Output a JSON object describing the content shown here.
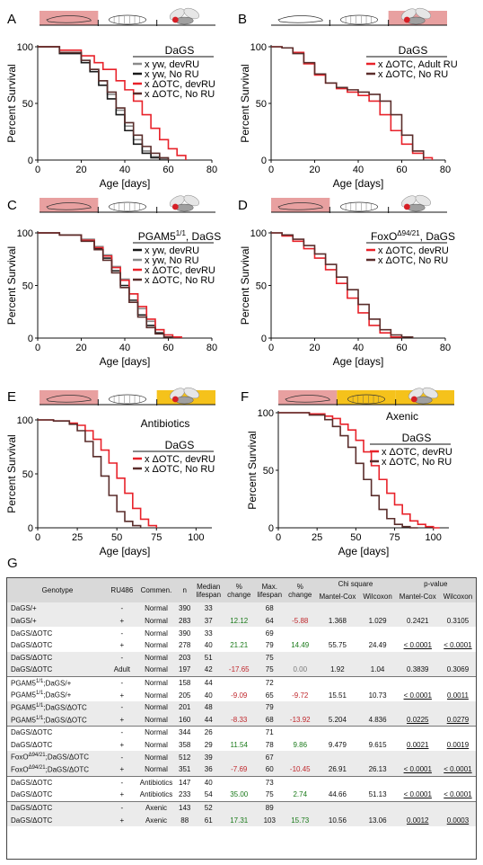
{
  "colors": {
    "black": "#1a1a1a",
    "gray": "#8a8a8a",
    "red": "#e8222a",
    "brown": "#5a2d2b",
    "pink": "#e8a0a0",
    "yellow": "#f5c21b",
    "green": "#1a7a1a",
    "negred": "#c0282d"
  },
  "chart_data": [
    {
      "panel": "A",
      "type": "line",
      "xlabel": "Age [days]",
      "ylabel": "Percent Survival",
      "xlim": [
        0,
        80
      ],
      "ylim": [
        0,
        100
      ],
      "xticks": [
        "0",
        "20",
        "40",
        "60",
        "80"
      ],
      "yticks": [
        "0",
        "50",
        "100"
      ],
      "stage_bar": {
        "larva": "pink",
        "pupa": "none",
        "adult": "none"
      },
      "legend_title": "DaGS",
      "series": [
        {
          "name": "x yw, devRU",
          "color": "gray",
          "x": [
            0,
            10,
            20,
            24,
            28,
            32,
            36,
            40,
            44,
            48,
            52,
            56,
            60
          ],
          "y": [
            100,
            95,
            88,
            80,
            70,
            58,
            44,
            30,
            18,
            8,
            3,
            1,
            0
          ]
        },
        {
          "name": "x yw, No RU",
          "color": "black",
          "x": [
            0,
            10,
            20,
            24,
            28,
            32,
            36,
            40,
            44,
            48,
            52,
            56
          ],
          "y": [
            100,
            94,
            86,
            78,
            66,
            54,
            40,
            26,
            14,
            6,
            2,
            0
          ]
        },
        {
          "name": "x ΔOTC, devRU",
          "color": "red",
          "x": [
            0,
            10,
            20,
            26,
            30,
            36,
            40,
            44,
            48,
            52,
            56,
            60,
            64,
            68
          ],
          "y": [
            100,
            97,
            92,
            86,
            80,
            70,
            62,
            52,
            40,
            28,
            18,
            10,
            4,
            0
          ]
        },
        {
          "name": "x ΔOTC, No RU",
          "color": "brown",
          "x": [
            0,
            10,
            20,
            24,
            28,
            32,
            36,
            40,
            44,
            48,
            52,
            56,
            60
          ],
          "y": [
            100,
            95,
            88,
            80,
            70,
            60,
            46,
            33,
            22,
            12,
            6,
            2,
            0
          ]
        }
      ]
    },
    {
      "panel": "B",
      "type": "line",
      "xlabel": "Age [days]",
      "ylabel": "Percent Survival",
      "xlim": [
        0,
        80
      ],
      "ylim": [
        0,
        100
      ],
      "xticks": [
        "0",
        "20",
        "40",
        "60",
        "80"
      ],
      "yticks": [
        "0",
        "50",
        "100"
      ],
      "stage_bar": {
        "larva": "none",
        "pupa": "none",
        "adult": "pink"
      },
      "legend_title": "DaGS",
      "series": [
        {
          "name": "x ΔOTC, Adult RU",
          "color": "red",
          "x": [
            0,
            5,
            10,
            15,
            20,
            25,
            30,
            35,
            40,
            45,
            50,
            55,
            60,
            65,
            70,
            74
          ],
          "y": [
            100,
            99,
            95,
            85,
            75,
            68,
            63,
            60,
            57,
            52,
            40,
            26,
            14,
            6,
            2,
            0
          ]
        },
        {
          "name": "x ΔOTC, No RU",
          "color": "brown",
          "x": [
            0,
            5,
            10,
            15,
            20,
            25,
            30,
            35,
            40,
            45,
            50,
            55,
            60,
            65,
            70
          ],
          "y": [
            100,
            99,
            94,
            86,
            76,
            68,
            64,
            62,
            60,
            58,
            52,
            40,
            22,
            8,
            0
          ]
        }
      ]
    },
    {
      "panel": "C",
      "type": "line",
      "xlabel": "Age [days]",
      "ylabel": "Percent Survival",
      "xlim": [
        0,
        80
      ],
      "ylim": [
        0,
        100
      ],
      "xticks": [
        "0",
        "20",
        "40",
        "60",
        "80"
      ],
      "yticks": [
        "0",
        "50",
        "100"
      ],
      "stage_bar": {
        "larva": "pink",
        "pupa": "none",
        "adult": "none"
      },
      "legend_title": "PGAM5",
      "legend_title_sup": "1/1",
      "legend_title_suffix": ", DaGS",
      "series": [
        {
          "name": "x yw, devRU",
          "color": "black",
          "x": [
            0,
            10,
            20,
            26,
            30,
            34,
            38,
            42,
            46,
            50,
            54,
            58,
            62
          ],
          "y": [
            100,
            98,
            93,
            85,
            76,
            64,
            50,
            36,
            22,
            12,
            5,
            1,
            0
          ]
        },
        {
          "name": "x yw, No RU",
          "color": "gray",
          "x": [
            0,
            10,
            20,
            26,
            30,
            34,
            38,
            42,
            46,
            50,
            54,
            58,
            62,
            66
          ],
          "y": [
            100,
            98,
            94,
            87,
            79,
            68,
            56,
            42,
            28,
            16,
            8,
            3,
            1,
            0
          ]
        },
        {
          "name": "x ΔOTC, devRU",
          "color": "red",
          "x": [
            0,
            10,
            20,
            26,
            30,
            34,
            38,
            42,
            46,
            50,
            54,
            58,
            62,
            66
          ],
          "y": [
            100,
            98,
            93,
            86,
            78,
            67,
            55,
            42,
            30,
            18,
            8,
            3,
            1,
            0
          ]
        },
        {
          "name": "x ΔOTC, No RU",
          "color": "brown",
          "x": [
            0,
            10,
            20,
            26,
            30,
            34,
            38,
            42,
            46,
            50,
            54,
            58,
            62
          ],
          "y": [
            100,
            98,
            92,
            84,
            74,
            62,
            48,
            34,
            20,
            10,
            4,
            1,
            0
          ]
        }
      ]
    },
    {
      "panel": "D",
      "type": "line",
      "xlabel": "Age [days]",
      "ylabel": "Percent Survival",
      "xlim": [
        0,
        80
      ],
      "ylim": [
        0,
        100
      ],
      "xticks": [
        "0",
        "20",
        "40",
        "60",
        "80"
      ],
      "yticks": [
        "0",
        "50",
        "100"
      ],
      "stage_bar": {
        "larva": "pink",
        "pupa": "none",
        "adult": "none"
      },
      "legend_title": "FoxO",
      "legend_title_sup": "Δ94/21",
      "legend_title_suffix": ", DaGS",
      "series": [
        {
          "name": "x ΔOTC, devRU",
          "color": "red",
          "x": [
            0,
            5,
            10,
            15,
            20,
            25,
            30,
            35,
            40,
            45,
            50,
            55,
            60
          ],
          "y": [
            100,
            97,
            92,
            85,
            76,
            65,
            52,
            38,
            24,
            12,
            5,
            1,
            0
          ]
        },
        {
          "name": "x ΔOTC, No RU",
          "color": "brown",
          "x": [
            0,
            5,
            10,
            15,
            20,
            25,
            30,
            35,
            40,
            45,
            50,
            55,
            60,
            65
          ],
          "y": [
            100,
            98,
            94,
            88,
            80,
            70,
            58,
            46,
            32,
            18,
            8,
            3,
            1,
            0
          ]
        }
      ]
    },
    {
      "panel": "E",
      "type": "line",
      "xlabel": "Age [days]",
      "ylabel": "Percent Survival",
      "xlim": [
        0,
        110
      ],
      "ylim": [
        0,
        100
      ],
      "xticks": [
        "0",
        "25",
        "50",
        "75",
        "100"
      ],
      "yticks": [
        "0",
        "50",
        "100"
      ],
      "stage_bar": {
        "larva": "pink",
        "pupa": "none",
        "adult": "yellow"
      },
      "annotation": "Antibiotics",
      "legend_title": "DaGS",
      "series": [
        {
          "name": "x ΔOTC, devRU",
          "color": "red",
          "x": [
            0,
            10,
            20,
            25,
            30,
            35,
            40,
            45,
            50,
            55,
            60,
            65,
            70,
            75
          ],
          "y": [
            100,
            99,
            97,
            95,
            90,
            82,
            72,
            60,
            46,
            32,
            18,
            8,
            2,
            0
          ]
        },
        {
          "name": "x ΔOTC, No RU",
          "color": "brown",
          "x": [
            0,
            10,
            20,
            25,
            30,
            35,
            40,
            45,
            50,
            55,
            60,
            65
          ],
          "y": [
            100,
            99,
            96,
            90,
            80,
            66,
            48,
            30,
            15,
            6,
            2,
            0
          ]
        }
      ]
    },
    {
      "panel": "F",
      "type": "line",
      "xlabel": "Age [days]",
      "ylabel": "Percent Survival",
      "xlim": [
        0,
        110
      ],
      "ylim": [
        0,
        100
      ],
      "xticks": [
        "0",
        "25",
        "50",
        "75",
        "100"
      ],
      "yticks": [
        "0",
        "50",
        "100"
      ],
      "stage_bar": {
        "larva": "pink",
        "pupa": "yellow",
        "adult": "yellow"
      },
      "annotation": "Axenic",
      "legend_title": "DaGS",
      "series": [
        {
          "name": "x ΔOTC, devRU",
          "color": "red",
          "x": [
            0,
            20,
            30,
            35,
            40,
            45,
            50,
            55,
            60,
            65,
            70,
            75,
            80,
            85,
            90,
            95,
            100,
            104
          ],
          "y": [
            100,
            99,
            97,
            95,
            90,
            85,
            76,
            66,
            54,
            42,
            30,
            20,
            12,
            6,
            3,
            1,
            0,
            0
          ]
        },
        {
          "name": "x ΔOTC, No RU",
          "color": "brown",
          "x": [
            0,
            20,
            30,
            35,
            40,
            45,
            50,
            55,
            60,
            65,
            70,
            75,
            80,
            85,
            90
          ],
          "y": [
            100,
            98,
            94,
            88,
            80,
            70,
            56,
            42,
            28,
            16,
            8,
            3,
            1,
            0,
            0
          ]
        }
      ]
    }
  ],
  "table": {
    "panel_label": "G",
    "headers": {
      "genotype": "Genotype",
      "ru": "RU486",
      "comment": "Commen.",
      "n": "n",
      "median": "Median lifespan",
      "pct1": "% change",
      "max": "Max. lifespan",
      "pct2": "% change",
      "chi": "Chi square",
      "pval": "p-value",
      "mc": "Mantel-Cox",
      "wx": "Wilcoxon"
    },
    "rows": [
      {
        "g": "DaGS/+",
        "ru": "-",
        "c": "Normal",
        "n": "390",
        "med": "33",
        "pc1": "",
        "mx": "68",
        "pc2": "",
        "chimc": "",
        "chiwx": "",
        "pmc": "",
        "pwx": ""
      },
      {
        "g": "DaGS/+",
        "ru": "+",
        "c": "Normal",
        "n": "283",
        "med": "37",
        "pc1": "12.12",
        "mx": "64",
        "pc2": "-5.88",
        "chimc": "1.368",
        "chiwx": "1.029",
        "pmc": "0.2421",
        "pwx": "0.3105"
      },
      {
        "g": "DaGS/ΔOTC",
        "ru": "-",
        "c": "Normal",
        "n": "390",
        "med": "33",
        "pc1": "",
        "mx": "69",
        "pc2": "",
        "chimc": "",
        "chiwx": "",
        "pmc": "",
        "pwx": ""
      },
      {
        "g": "DaGS/ΔOTC",
        "ru": "+",
        "c": "Normal",
        "n": "278",
        "med": "40",
        "pc1": "21.21",
        "mx": "79",
        "pc2": "14.49",
        "chimc": "55.75",
        "chiwx": "24.49",
        "pmc": "< 0.0001",
        "pwx": "< 0.0001"
      },
      {
        "g": "DaGS/ΔOTC",
        "ru": "-",
        "c": "Normal",
        "n": "203",
        "med": "51",
        "pc1": "",
        "mx": "75",
        "pc2": "",
        "chimc": "",
        "chiwx": "",
        "pmc": "",
        "pwx": ""
      },
      {
        "g": "DaGS/ΔOTC",
        "ru": "Adult",
        "c": "Normal",
        "n": "197",
        "med": "42",
        "pc1": "-17.65",
        "mx": "75",
        "pc2": "0.00",
        "chimc": "1.92",
        "chiwx": "1.04",
        "pmc": "0.3839",
        "pwx": "0.3069"
      },
      {
        "g": "PGAM5",
        "sup": "1/1",
        "gs": ";DaGS/+",
        "ru": "-",
        "c": "Normal",
        "n": "158",
        "med": "44",
        "pc1": "",
        "mx": "72",
        "pc2": "",
        "chimc": "",
        "chiwx": "",
        "pmc": "",
        "pwx": ""
      },
      {
        "g": "PGAM5",
        "sup": "1/1",
        "gs": ";DaGS/+",
        "ru": "+",
        "c": "Normal",
        "n": "205",
        "med": "40",
        "pc1": "-9.09",
        "mx": "65",
        "pc2": "-9.72",
        "chimc": "15.51",
        "chiwx": "10.73",
        "pmc": "< 0.0001",
        "pwx": "0.0011"
      },
      {
        "g": "PGAM5",
        "sup": "1/1",
        "gs": ";DaGS/ΔOTC",
        "ru": "-",
        "c": "Normal",
        "n": "201",
        "med": "48",
        "pc1": "",
        "mx": "79",
        "pc2": "",
        "chimc": "",
        "chiwx": "",
        "pmc": "",
        "pwx": ""
      },
      {
        "g": "PGAM5",
        "sup": "1/1",
        "gs": ";DaGS/ΔOTC",
        "ru": "+",
        "c": "Normal",
        "n": "160",
        "med": "44",
        "pc1": "-8.33",
        "mx": "68",
        "pc2": "-13.92",
        "chimc": "5.204",
        "chiwx": "4.836",
        "pmc": "0.0225",
        "pwx": "0.0279"
      },
      {
        "g": "DaGS/ΔOTC",
        "ru": "-",
        "c": "Normal",
        "n": "344",
        "med": "26",
        "pc1": "",
        "mx": "71",
        "pc2": "",
        "chimc": "",
        "chiwx": "",
        "pmc": "",
        "pwx": ""
      },
      {
        "g": "DaGS/ΔOTC",
        "ru": "+",
        "c": "Normal",
        "n": "358",
        "med": "29",
        "pc1": "11.54",
        "mx": "78",
        "pc2": "9.86",
        "chimc": "9.479",
        "chiwx": "9.615",
        "pmc": "0.0021",
        "pwx": "0.0019"
      },
      {
        "g": "FoxO",
        "sup": "Δ94/21",
        "gs": ";DaGS/ΔOTC",
        "ru": "-",
        "c": "Normal",
        "n": "512",
        "med": "39",
        "pc1": "",
        "mx": "67",
        "pc2": "",
        "chimc": "",
        "chiwx": "",
        "pmc": "",
        "pwx": ""
      },
      {
        "g": "FoxO",
        "sup": "Δ94/21",
        "gs": ";DaGS/ΔOTC",
        "ru": "+",
        "c": "Normal",
        "n": "351",
        "med": "36",
        "pc1": "-7.69",
        "mx": "60",
        "pc2": "-10.45",
        "chimc": "26.91",
        "chiwx": "26.13",
        "pmc": "< 0.0001",
        "pwx": "< 0.0001"
      },
      {
        "g": "DaGS/ΔOTC",
        "ru": "-",
        "c": "Antibiotics",
        "n": "147",
        "med": "40",
        "pc1": "",
        "mx": "73",
        "pc2": "",
        "chimc": "",
        "chiwx": "",
        "pmc": "",
        "pwx": ""
      },
      {
        "g": "DaGS/ΔOTC",
        "ru": "+",
        "c": "Antibiotics",
        "n": "233",
        "med": "54",
        "pc1": "35.00",
        "mx": "75",
        "pc2": "2.74",
        "chimc": "44.66",
        "chiwx": "51.13",
        "pmc": "< 0.0001",
        "pwx": "< 0.0001"
      },
      {
        "g": "DaGS/ΔOTC",
        "ru": "-",
        "c": "Axenic",
        "n": "143",
        "med": "52",
        "pc1": "",
        "mx": "89",
        "pc2": "",
        "chimc": "",
        "chiwx": "",
        "pmc": "",
        "pwx": ""
      },
      {
        "g": "DaGS/ΔOTC",
        "ru": "+",
        "c": "Axenic",
        "n": "88",
        "med": "61",
        "pc1": "17.31",
        "mx": "103",
        "pc2": "15.73",
        "chimc": "10.56",
        "chiwx": "13.06",
        "pmc": "0.0012",
        "pwx": "0.0003"
      }
    ]
  }
}
